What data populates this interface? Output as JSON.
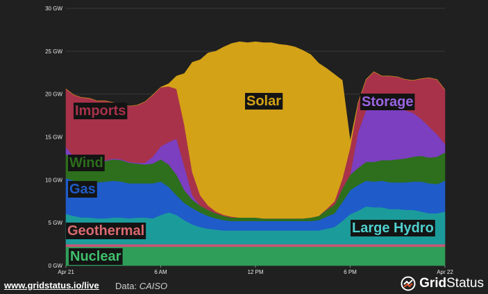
{
  "chart_data": {
    "type": "area",
    "stacked": true,
    "x": [
      "00:00",
      "00:30",
      "01:00",
      "01:30",
      "02:00",
      "02:30",
      "03:00",
      "03:30",
      "04:00",
      "04:30",
      "05:00",
      "05:30",
      "06:00",
      "06:30",
      "07:00",
      "07:30",
      "08:00",
      "08:30",
      "09:00",
      "09:30",
      "10:00",
      "10:30",
      "11:00",
      "11:30",
      "12:00",
      "12:30",
      "13:00",
      "13:30",
      "14:00",
      "14:30",
      "15:00",
      "15:30",
      "16:00",
      "16:30",
      "17:00",
      "17:30",
      "18:00",
      "18:30",
      "19:00",
      "19:30",
      "20:00",
      "20:30",
      "21:00",
      "21:30",
      "22:00",
      "22:30",
      "23:00",
      "23:30",
      "24:00"
    ],
    "x_ticks": [
      "Apr 21",
      "6 AM",
      "12 PM",
      "6 PM",
      "Apr 22"
    ],
    "y_ticks": [
      "0 GW",
      "5 GW",
      "10 GW",
      "15 GW",
      "20 GW",
      "25 GW",
      "30 GW"
    ],
    "ylim": [
      0,
      30
    ],
    "unit": "GW",
    "series": [
      {
        "name": "Nuclear",
        "color": "#2e9e58",
        "label_color": "#3fbf6c",
        "values": [
          2.2,
          2.2,
          2.2,
          2.2,
          2.2,
          2.2,
          2.2,
          2.2,
          2.2,
          2.2,
          2.2,
          2.2,
          2.2,
          2.2,
          2.2,
          2.2,
          2.2,
          2.2,
          2.2,
          2.2,
          2.2,
          2.2,
          2.2,
          2.2,
          2.2,
          2.2,
          2.2,
          2.2,
          2.2,
          2.2,
          2.2,
          2.2,
          2.2,
          2.2,
          2.2,
          2.2,
          2.2,
          2.2,
          2.2,
          2.2,
          2.2,
          2.2,
          2.2,
          2.2,
          2.2,
          2.2,
          2.2,
          2.2,
          2.2
        ]
      },
      {
        "name": "Geothermal",
        "color": "#c75676",
        "label_color": "#d96a6f",
        "values": [
          0.3,
          0.3,
          0.3,
          0.3,
          0.3,
          0.3,
          0.3,
          0.3,
          0.3,
          0.3,
          0.3,
          0.3,
          0.3,
          0.3,
          0.3,
          0.3,
          0.3,
          0.3,
          0.3,
          0.3,
          0.3,
          0.3,
          0.3,
          0.3,
          0.3,
          0.3,
          0.3,
          0.3,
          0.3,
          0.3,
          0.3,
          0.3,
          0.3,
          0.3,
          0.3,
          0.3,
          0.3,
          0.3,
          0.3,
          0.3,
          0.3,
          0.3,
          0.3,
          0.3,
          0.3,
          0.3,
          0.3,
          0.3,
          0.3
        ]
      },
      {
        "name": "Large Hydro",
        "color": "#1c9b9b",
        "label_color": "#4fd1cf",
        "values": [
          3.5,
          3.3,
          3.1,
          3.1,
          3.0,
          3.0,
          3.1,
          3.1,
          3.0,
          3.1,
          3.1,
          3.0,
          3.4,
          3.7,
          3.4,
          2.8,
          2.3,
          2.0,
          1.8,
          1.7,
          1.6,
          1.6,
          1.6,
          1.6,
          1.6,
          1.6,
          1.6,
          1.6,
          1.6,
          1.6,
          1.6,
          1.6,
          1.6,
          1.8,
          2.0,
          2.7,
          3.5,
          3.9,
          4.4,
          4.3,
          4.3,
          4.1,
          4.1,
          4.0,
          4.0,
          3.8,
          3.6,
          3.6,
          3.8
        ]
      },
      {
        "name": "Gas",
        "color": "#1f5cc9",
        "label_color": "#1f5cc9",
        "values": [
          4.2,
          4.1,
          4.0,
          4.1,
          4.2,
          4.3,
          4.3,
          4.2,
          4.1,
          4.0,
          4.0,
          4.1,
          3.9,
          3.0,
          2.3,
          2.0,
          1.9,
          1.7,
          1.5,
          1.3,
          1.2,
          1.1,
          1.1,
          1.1,
          1.1,
          1.1,
          1.1,
          1.1,
          1.1,
          1.1,
          1.1,
          1.1,
          1.2,
          1.4,
          1.6,
          2.2,
          2.8,
          3.0,
          3.0,
          3.0,
          3.1,
          3.1,
          3.1,
          3.2,
          3.3,
          3.5,
          3.5,
          3.4,
          3.6
        ]
      },
      {
        "name": "Wind",
        "color": "#2d6f1c",
        "label_color": "#2d6f1c",
        "values": [
          2.8,
          2.5,
          2.4,
          2.4,
          2.4,
          2.4,
          2.5,
          2.5,
          2.4,
          2.3,
          2.2,
          2.3,
          2.6,
          2.6,
          2.4,
          1.5,
          1.0,
          0.8,
          0.7,
          0.6,
          0.5,
          0.4,
          0.4,
          0.4,
          0.4,
          0.3,
          0.3,
          0.3,
          0.3,
          0.3,
          0.3,
          0.4,
          0.5,
          0.8,
          1.0,
          1.6,
          1.8,
          2.0,
          2.2,
          2.3,
          2.4,
          2.6,
          2.7,
          2.8,
          2.9,
          3.0,
          3.0,
          3.2,
          3.3
        ]
      },
      {
        "name": "Storage",
        "color": "#7b3fc0",
        "label_color": "#9b64e3",
        "values": [
          0.8,
          0.3,
          0.1,
          0.1,
          0.1,
          0.1,
          0.1,
          0.1,
          0.1,
          0.1,
          0.2,
          0.8,
          1.5,
          2.6,
          4.2,
          2.8,
          0.5,
          0,
          0,
          0,
          0,
          0,
          0,
          0,
          0,
          0,
          0,
          0,
          0,
          0,
          0,
          0,
          0,
          0,
          0,
          0,
          0,
          4.2,
          6.0,
          6.9,
          6.4,
          6.3,
          6.2,
          5.6,
          5.1,
          4.3,
          3.6,
          2.6,
          1.0
        ]
      },
      {
        "name": "Imports",
        "color": "#a8324a",
        "label_color": "#a8324a",
        "values": [
          6.8,
          7.2,
          7.5,
          7.3,
          7.0,
          6.9,
          6.5,
          6.4,
          6.5,
          6.7,
          7.1,
          7.2,
          6.9,
          6.5,
          5.8,
          4.8,
          2.7,
          1.2,
          0.5,
          0.2,
          0.1,
          0.1,
          0,
          0,
          0,
          0,
          0,
          0,
          0,
          0,
          0,
          0,
          0,
          0.1,
          0.4,
          1.1,
          3.2,
          3.4,
          3.6,
          3.6,
          3.4,
          3.5,
          3.4,
          3.6,
          3.8,
          4.7,
          5.7,
          6.4,
          6.3
        ]
      },
      {
        "name": "Solar",
        "color": "#d4a217",
        "label_color": "#d4a217",
        "values": [
          0,
          0,
          0,
          0,
          0,
          0,
          0,
          0,
          0,
          0,
          0,
          0,
          0,
          0.3,
          1.5,
          6.0,
          12.8,
          15.8,
          17.8,
          18.7,
          19.6,
          20.2,
          20.5,
          20.4,
          20.5,
          20.5,
          20.5,
          20.3,
          20.2,
          20.0,
          19.6,
          19.0,
          17.8,
          16.4,
          14.8,
          11.5,
          0.7,
          0,
          0,
          0,
          0,
          0,
          0,
          0,
          0,
          0,
          0,
          0,
          0
        ]
      }
    ]
  },
  "footer": {
    "link": "www.gridstatus.io/live",
    "source_prefix": "Data: ",
    "source_name": "CAISO"
  },
  "brand": {
    "name_bold": "Grid",
    "name_rest": "Status",
    "icon": "gridstatus-logo-icon"
  }
}
